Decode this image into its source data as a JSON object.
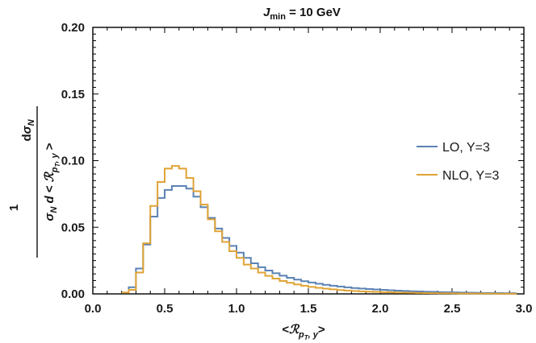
{
  "chart_data": {
    "type": "line",
    "title": "J_min = 10 GeV",
    "title_parts": {
      "main": "J",
      "sub": "min",
      "rest": " = 10 GeV"
    },
    "xlabel": "<R_{pT, y}>",
    "xlabel_parts": {
      "open": "<",
      "symbol": "ℛ",
      "sub": "p",
      "subsub": "T",
      "subrest": ", y",
      "close": ">"
    },
    "ylabel": "1/σ_N dσ_N / d<R_{pT,y}>",
    "ylabel_parts": {
      "one": "1",
      "num_d": "d",
      "num_sigma": "σ",
      "num_sub": "N",
      "den_sigma": "σ",
      "den_sub": "N",
      "den_d": "d",
      "den_open": "<",
      "den_symbol": "ℛ",
      "den_sub2": "p",
      "den_subsub": "T",
      "den_rest": ", y",
      "den_close": ">"
    },
    "xlim": [
      0,
      3.0
    ],
    "ylim": [
      0,
      0.2
    ],
    "x_ticks": [
      "0.0",
      "0.5",
      "1.0",
      "1.5",
      "2.0",
      "2.5",
      "3.0"
    ],
    "y_ticks": [
      "0.00",
      "0.05",
      "0.10",
      "0.15",
      "0.20"
    ],
    "grid": false,
    "legend_position": "right",
    "bin_edges": [
      0.2,
      0.25,
      0.3,
      0.35,
      0.4,
      0.45,
      0.5,
      0.55,
      0.6,
      0.65,
      0.7,
      0.75,
      0.8,
      0.85,
      0.9,
      0.95,
      1.0,
      1.05,
      1.1,
      1.15,
      1.2,
      1.25,
      1.3,
      1.35,
      1.4,
      1.45,
      1.5,
      1.55,
      1.6,
      1.65,
      1.7,
      1.75,
      1.8,
      1.85,
      1.9,
      1.95,
      2.0,
      2.05,
      2.1,
      2.15,
      2.2,
      2.25,
      2.3,
      2.35,
      2.4,
      2.45,
      2.5,
      2.55,
      2.6,
      2.65,
      2.7,
      2.75,
      2.8,
      2.85,
      2.9,
      2.95
    ],
    "series": [
      {
        "name": "LO, Y=3",
        "color": "#5b82b4",
        "values": [
          0.001,
          0.005,
          0.019,
          0.037,
          0.058,
          0.072,
          0.078,
          0.081,
          0.081,
          0.079,
          0.073,
          0.065,
          0.057,
          0.049,
          0.042,
          0.036,
          0.031,
          0.027,
          0.023,
          0.02,
          0.0175,
          0.0155,
          0.0137,
          0.0121,
          0.0107,
          0.0095,
          0.0085,
          0.0076,
          0.0068,
          0.0061,
          0.0055,
          0.0049,
          0.0044,
          0.004,
          0.0036,
          0.0033,
          0.003,
          0.0027,
          0.0024,
          0.0022,
          0.002,
          0.0018,
          0.0016,
          0.0015,
          0.0013,
          0.0012,
          0.0011,
          0.001,
          0.0009,
          0.0008,
          0.0007,
          0.00065,
          0.0006,
          0.00055,
          0.0005
        ]
      },
      {
        "name": "NLO, Y=3",
        "color": "#e0a336",
        "values": [
          0.001,
          0.003,
          0.016,
          0.038,
          0.066,
          0.084,
          0.094,
          0.096,
          0.094,
          0.087,
          0.077,
          0.067,
          0.056,
          0.047,
          0.039,
          0.032,
          0.027,
          0.022,
          0.019,
          0.016,
          0.0135,
          0.0115,
          0.0097,
          0.0083,
          0.0071,
          0.0061,
          0.0052,
          0.0045,
          0.0039,
          0.0034,
          0.0029,
          0.0025,
          0.0022,
          0.0019,
          0.0017,
          0.0015,
          0.0013,
          0.0012,
          0.001,
          0.0009,
          0.0008,
          0.0007,
          0.00062,
          0.00055,
          0.00048,
          0.00042,
          0.00037,
          0.00033,
          0.00029,
          0.00026,
          0.00023,
          0.0002,
          0.00018,
          0.00016,
          0.00014
        ]
      }
    ]
  }
}
